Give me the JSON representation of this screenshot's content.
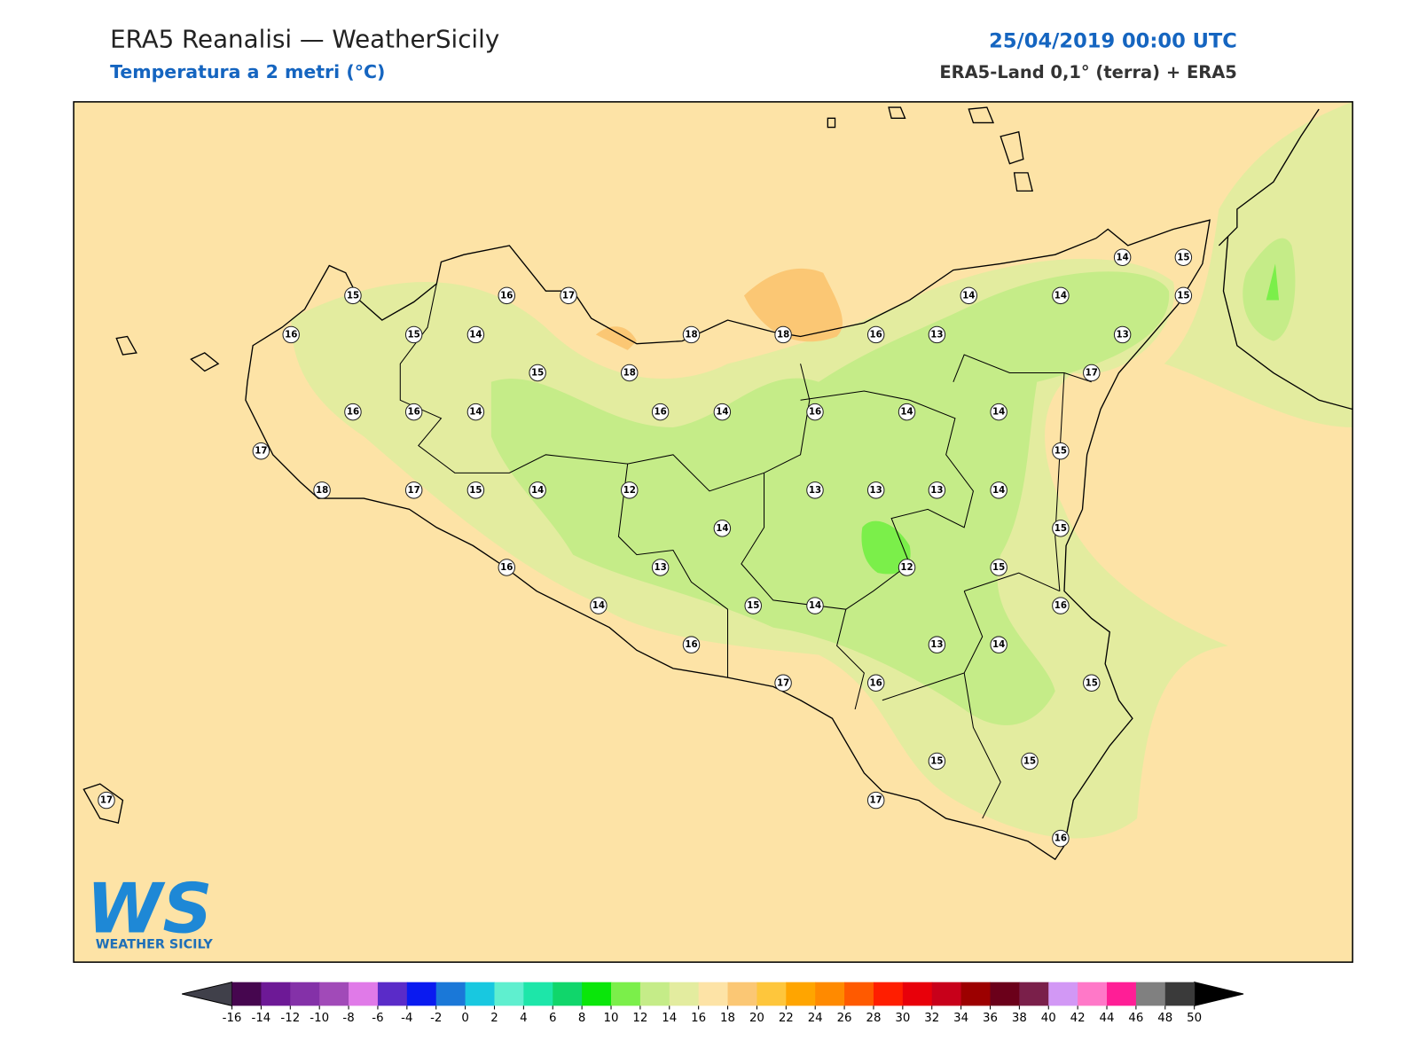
{
  "header": {
    "title": "ERA5 Reanalisi — WeatherSicily",
    "subtitle": "Temperatura a 2 metri (°C)",
    "datetime": "25/04/2019 00:00 UTC",
    "source": "ERA5-Land 0,1° (terra) + ERA5"
  },
  "map": {
    "stations": [
      15,
      16,
      17,
      16,
      15,
      14,
      18,
      18,
      16,
      13,
      14,
      14,
      14,
      15,
      15,
      13,
      15,
      18,
      17,
      16,
      16,
      14,
      16,
      14,
      16,
      14,
      14,
      17,
      15,
      18,
      17,
      15,
      14,
      12,
      13,
      13,
      13,
      14,
      14,
      15,
      16,
      13,
      12,
      15,
      14,
      15,
      14,
      16,
      16,
      13,
      14,
      17,
      16,
      15,
      15,
      15,
      17,
      17,
      16
    ]
  },
  "colorbar": {
    "ticks": [
      -16,
      -14,
      -12,
      -10,
      -8,
      -6,
      -4,
      -2,
      0,
      2,
      4,
      6,
      8,
      10,
      12,
      14,
      16,
      18,
      20,
      22,
      24,
      26,
      28,
      30,
      32,
      34,
      36,
      38,
      40,
      42,
      44,
      46,
      48,
      50
    ],
    "colors": [
      "#46064f",
      "#6d1996",
      "#8431a8",
      "#a14ab8",
      "#e07ae8",
      "#5a2bc8",
      "#0a1af0",
      "#1a78d8",
      "#18c8e0",
      "#5fefcf",
      "#1de6a9",
      "#10d66b",
      "#0ae60a",
      "#7bef4a",
      "#c5ec88",
      "#e3ec9f",
      "#fde3a6",
      "#fbc774",
      "#fec63c",
      "#ffa500",
      "#ff8a00",
      "#ff5a00",
      "#ff1e00",
      "#e8000a",
      "#c8001a",
      "#9c0000",
      "#6b001a",
      "#7a1f4a",
      "#d298f5",
      "#ff78c8",
      "#ff1e96",
      "#808080",
      "#3a3a3a"
    ],
    "under_color": "#40404a",
    "over_color": "#000000"
  },
  "logo": {
    "mark": "WS",
    "text": "WEATHER SICILY"
  }
}
